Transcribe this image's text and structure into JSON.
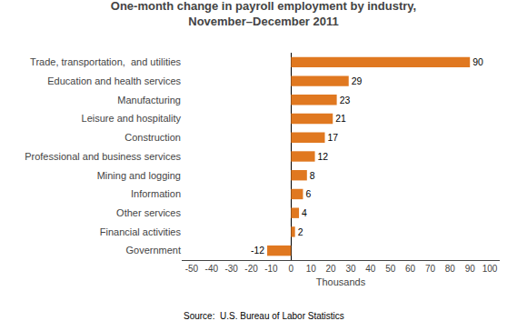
{
  "chart_data": {
    "type": "bar",
    "orientation": "horizontal",
    "title": "One-month change in payroll employment by industry,\nNovember–December 2011",
    "categories": [
      "Trade, transportation,  and utilities",
      "Education and health services",
      "Manufacturing",
      "Leisure and hospitality",
      "Construction",
      "Professional and business services",
      "Mining and logging",
      "Information",
      "Other services",
      "Financial activities",
      "Government"
    ],
    "values": [
      90,
      29,
      23,
      21,
      17,
      12,
      8,
      6,
      4,
      2,
      -12
    ],
    "color": "#E07820",
    "xlim": [
      -55,
      105
    ],
    "xticks": [
      -50,
      -40,
      -30,
      -20,
      -10,
      0,
      10,
      20,
      30,
      40,
      50,
      60,
      70,
      80,
      90,
      100
    ],
    "xlabel": "Thousands",
    "source": "Source:  U.S. Bureau of Labor Statistics",
    "data_labels": true,
    "grid": false
  }
}
